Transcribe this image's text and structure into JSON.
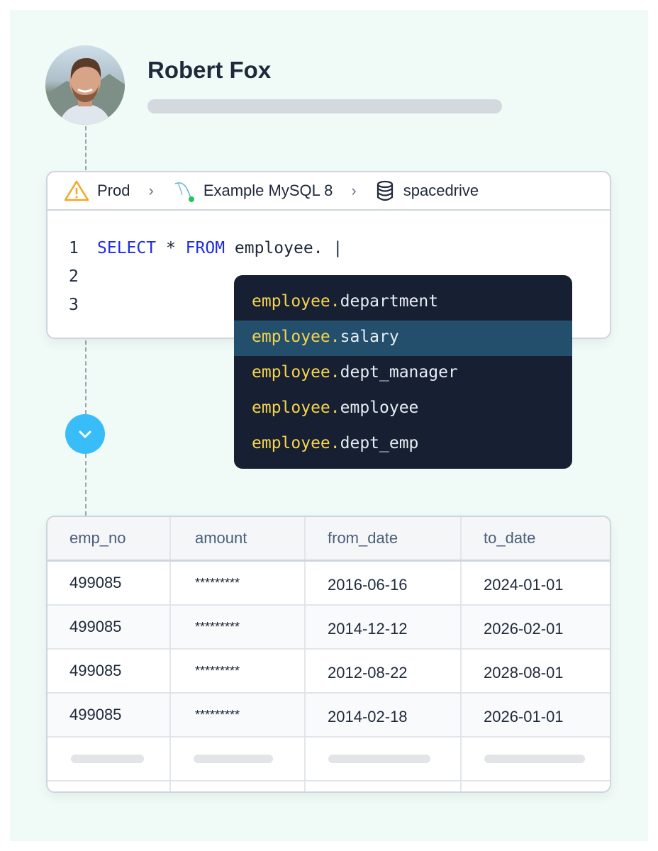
{
  "user": {
    "name": "Robert Fox"
  },
  "breadcrumb": {
    "environment": "Prod",
    "connection": "Example MySQL 8",
    "database": "spacedrive",
    "connection_status_color": "#22c55e",
    "warning_color": "#f5a623"
  },
  "editor": {
    "line_numbers": [
      "1",
      "2",
      "3"
    ],
    "line1": {
      "kw1": "SELECT",
      "star": "*",
      "kw2": "FROM",
      "rest": "employee.",
      "cursor": "|"
    }
  },
  "autocomplete": {
    "prefix": "employee.",
    "items": [
      {
        "suffix": "department",
        "selected": false
      },
      {
        "suffix": "salary",
        "selected": true
      },
      {
        "suffix": "dept_manager",
        "selected": false
      },
      {
        "suffix": "employee",
        "selected": false
      },
      {
        "suffix": "dept_emp",
        "selected": false
      }
    ]
  },
  "table": {
    "columns": [
      "emp_no",
      "amount",
      "from_date",
      "to_date"
    ],
    "rows": [
      [
        "499085",
        "*********",
        "2016-06-16",
        "2024-01-01"
      ],
      [
        "499085",
        "*********",
        "2014-12-12",
        "2026-02-01"
      ],
      [
        "499085",
        "*********",
        "2012-08-22",
        "2028-08-01"
      ],
      [
        "499085",
        "*********",
        "2014-02-18",
        "2026-01-01"
      ]
    ]
  }
}
